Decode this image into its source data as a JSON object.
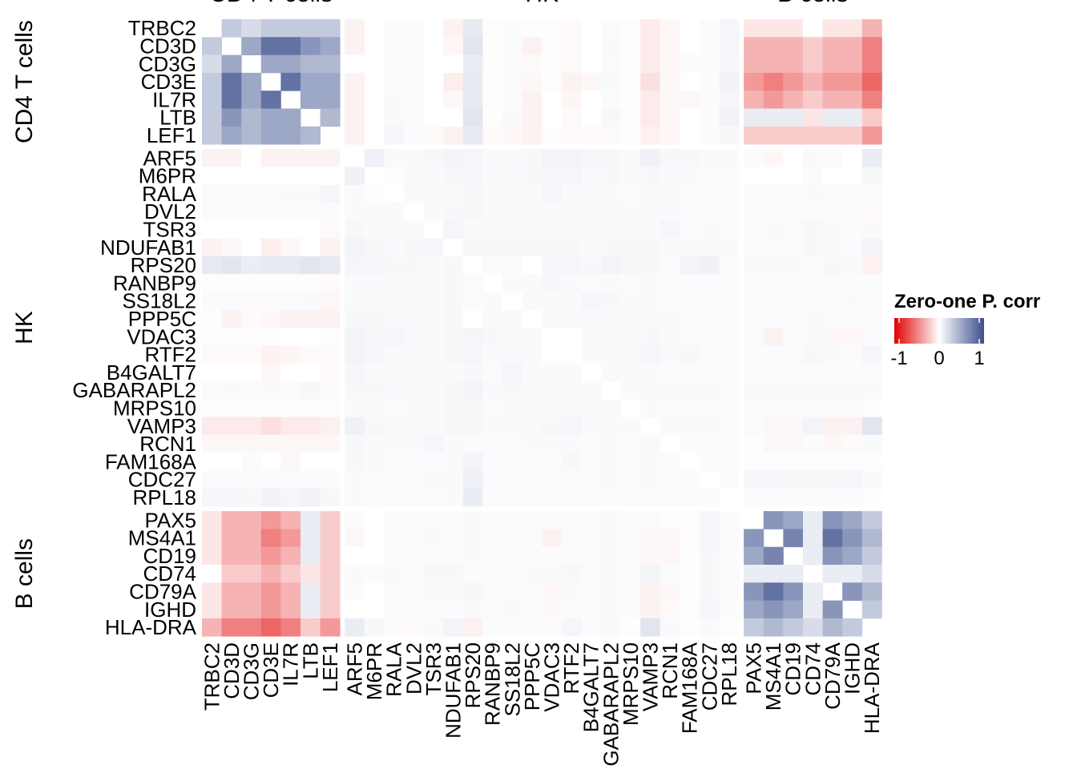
{
  "chart_data": {
    "type": "heatmap",
    "groups": [
      {
        "name": "CD4 T cells",
        "genes": [
          "TRBC2",
          "CD3D",
          "CD3G",
          "CD3E",
          "IL7R",
          "LTB",
          "LEF1"
        ]
      },
      {
        "name": "HK",
        "genes": [
          "ARF5",
          "M6PR",
          "RALA",
          "DVL2",
          "TSR3",
          "NDUFAB1",
          "RPS20",
          "RANBP9",
          "SS18L2",
          "PPP5C",
          "VDAC3",
          "RTF2",
          "B4GALT7",
          "GABARAPL2",
          "MRPS10",
          "VAMP3",
          "RCN1",
          "FAM168A",
          "CDC27",
          "RPL18"
        ]
      },
      {
        "name": "B cells",
        "genes": [
          "PAX5",
          "MS4A1",
          "CD19",
          "CD74",
          "CD79A",
          "IGHD",
          "HLA-DRA"
        ]
      }
    ],
    "values": [
      [
        null,
        0.3,
        0.2,
        0.3,
        0.3,
        0.3,
        0.3,
        -0.05,
        0,
        0.02,
        0.02,
        0,
        -0.05,
        0.12,
        0.01,
        0.02,
        0.01,
        0.01,
        -0.02,
        0,
        0.02,
        0.01,
        -0.08,
        -0.03,
        0,
        0.02,
        0.05,
        -0.1,
        -0.1,
        -0.1,
        0,
        -0.1,
        -0.1,
        -0.3
      ],
      [
        0.3,
        null,
        0.5,
        0.8,
        0.8,
        0.6,
        0.5,
        -0.05,
        0,
        0.02,
        0.02,
        0,
        -0.03,
        0.15,
        0.01,
        0.02,
        -0.05,
        0.01,
        -0.02,
        0,
        0.03,
        0.01,
        -0.08,
        -0.03,
        0,
        0.02,
        0.05,
        -0.3,
        -0.3,
        -0.3,
        -0.2,
        -0.3,
        -0.3,
        -0.5
      ],
      [
        0.2,
        0.5,
        null,
        0.5,
        0.5,
        0.4,
        0.4,
        0,
        0,
        0.02,
        0.02,
        0,
        0,
        0.1,
        0.01,
        0.02,
        -0.02,
        0.01,
        -0.02,
        0,
        0.02,
        0.01,
        -0.08,
        -0.03,
        0.02,
        0.02,
        0.04,
        -0.3,
        -0.3,
        -0.3,
        -0.2,
        -0.3,
        -0.3,
        -0.5
      ],
      [
        0.3,
        0.8,
        0.5,
        null,
        0.8,
        0.5,
        0.5,
        -0.05,
        0,
        0.02,
        0.02,
        0,
        -0.07,
        0.12,
        0.01,
        0.02,
        -0.03,
        0.01,
        -0.05,
        -0.03,
        0.03,
        0.01,
        -0.12,
        -0.03,
        0,
        0.02,
        0.07,
        -0.4,
        -0.5,
        -0.4,
        -0.3,
        -0.4,
        -0.4,
        -0.6
      ],
      [
        0.3,
        0.8,
        0.5,
        0.8,
        null,
        0.5,
        0.5,
        -0.05,
        0,
        0.03,
        0.02,
        0,
        -0.03,
        0.12,
        0.01,
        0.02,
        -0.05,
        0,
        -0.04,
        0,
        0.02,
        0.01,
        -0.08,
        -0.03,
        -0.03,
        0.02,
        0.05,
        -0.3,
        -0.4,
        -0.3,
        -0.2,
        -0.3,
        -0.3,
        -0.5
      ],
      [
        0.3,
        0.6,
        0.4,
        0.5,
        0.5,
        null,
        0.4,
        -0.05,
        0,
        0.03,
        0.02,
        0,
        0,
        0.15,
        0.01,
        0.03,
        -0.05,
        0,
        -0.02,
        0,
        0.04,
        0.01,
        -0.08,
        -0.03,
        0,
        0.02,
        0.07,
        0.1,
        0.1,
        0.1,
        -0.1,
        0.1,
        0.1,
        -0.2
      ],
      [
        0.3,
        0.5,
        0.4,
        0.5,
        0.5,
        0.4,
        null,
        -0.05,
        0,
        0.05,
        0.02,
        -0.02,
        -0.05,
        0.12,
        -0.02,
        -0.03,
        -0.05,
        0.01,
        -0.02,
        -0.02,
        0.02,
        0.01,
        -0.06,
        -0.03,
        0,
        0.02,
        0.04,
        -0.2,
        -0.2,
        -0.2,
        -0.2,
        -0.2,
        -0.2,
        -0.4
      ],
      [
        -0.05,
        -0.05,
        0,
        -0.05,
        -0.05,
        -0.05,
        -0.05,
        null,
        0.08,
        0.03,
        0.03,
        0.04,
        0.06,
        0.05,
        0.03,
        0.03,
        0.04,
        0.06,
        0.06,
        0.05,
        0.04,
        0.03,
        0.08,
        0.04,
        0.04,
        0.03,
        0.03,
        0.02,
        -0.03,
        0,
        0.03,
        -0.02,
        0,
        0.1
      ],
      [
        0,
        0,
        0,
        0,
        0,
        0,
        0,
        0.08,
        null,
        0.01,
        0.03,
        0.03,
        0.04,
        0.05,
        0.03,
        0.03,
        0.04,
        0.04,
        0.05,
        0.03,
        0.04,
        0.03,
        0.04,
        0.03,
        0.03,
        0.02,
        0.02,
        0,
        0,
        0,
        0.02,
        0,
        0,
        0.04
      ],
      [
        0.02,
        0.02,
        0.02,
        0.02,
        0.03,
        0.03,
        0.05,
        0.03,
        0.01,
        null,
        0.03,
        0.03,
        0.03,
        0.04,
        0.03,
        0.03,
        0.03,
        0.05,
        0.03,
        0.03,
        0.03,
        0.02,
        0.03,
        0.03,
        0.02,
        0.02,
        0.02,
        0.02,
        0.02,
        0.02,
        0.03,
        0.02,
        0.02,
        0.02
      ],
      [
        0.02,
        0.02,
        0.02,
        0.02,
        0.02,
        0.02,
        0.02,
        0.03,
        0.03,
        0.03,
        null,
        0.03,
        0.04,
        0.04,
        0.03,
        0.03,
        0.03,
        0.03,
        0.03,
        0.03,
        0.03,
        0.03,
        0.03,
        0.03,
        0.02,
        0.02,
        0.02,
        0.02,
        0.02,
        0.02,
        0.02,
        0.02,
        0.02,
        -0.02
      ],
      [
        0,
        0,
        0,
        0,
        0,
        0,
        -0.02,
        0.04,
        0.03,
        0.03,
        0.03,
        null,
        0.05,
        0.03,
        0.03,
        0.03,
        0.03,
        0.03,
        0.03,
        0.03,
        0.03,
        0.03,
        0.03,
        0.05,
        0.02,
        0.03,
        0.02,
        0.02,
        0.03,
        0.02,
        0.04,
        0.03,
        0.02,
        0.03
      ],
      [
        -0.05,
        -0.03,
        0,
        -0.07,
        -0.03,
        0,
        -0.05,
        0.06,
        0.04,
        0.03,
        0.04,
        0.05,
        null,
        0.04,
        0.04,
        0.04,
        0.04,
        0.04,
        0.04,
        0.03,
        0.04,
        0.04,
        0.04,
        0.03,
        0.03,
        0.03,
        0.03,
        0.02,
        0.02,
        0.02,
        0.04,
        0.03,
        0.02,
        0.06
      ],
      [
        0.12,
        0.15,
        0.1,
        0.12,
        0.12,
        0.15,
        0.12,
        0.05,
        0.05,
        0.04,
        0.04,
        0.03,
        0.04,
        null,
        0.02,
        0.02,
        0,
        0.05,
        0.05,
        0.04,
        0.06,
        0.04,
        0.04,
        0.02,
        0.06,
        0.08,
        0.02,
        0.03,
        0.03,
        0.03,
        0.02,
        0.04,
        0.03,
        -0.06
      ],
      [
        0.01,
        0.01,
        0.01,
        0.01,
        0.01,
        0.01,
        -0.02,
        0.03,
        0.03,
        0.03,
        0.03,
        0.03,
        0.04,
        0.02,
        null,
        0.03,
        0.03,
        0.04,
        0.03,
        0.02,
        0.03,
        0.02,
        0.03,
        0.02,
        0.02,
        0.02,
        0.02,
        0.02,
        0.02,
        0.02,
        0.02,
        0.02,
        0.02,
        0.02
      ],
      [
        0.02,
        0.02,
        0.02,
        0.02,
        0.02,
        0.03,
        -0.03,
        0.03,
        0.03,
        0.03,
        0.03,
        0.03,
        0.04,
        0.02,
        0.03,
        null,
        0.03,
        0.03,
        0.03,
        0.05,
        0.04,
        0.03,
        0.03,
        0.02,
        0.02,
        0.02,
        0.02,
        0.02,
        0.02,
        0.02,
        0.02,
        0.02,
        0.03,
        0.02
      ],
      [
        0.01,
        -0.05,
        -0.02,
        -0.03,
        -0.05,
        -0.05,
        -0.05,
        0.04,
        0.04,
        0.03,
        0.03,
        0.03,
        0.04,
        0,
        0.03,
        0.03,
        null,
        0.03,
        0.03,
        0.03,
        0.03,
        0.03,
        0.03,
        0.03,
        0.02,
        0.02,
        0.02,
        0.02,
        0.02,
        0.02,
        0.03,
        0.02,
        0.02,
        0.02
      ],
      [
        0.01,
        0.01,
        0.01,
        0.01,
        0,
        0,
        0.01,
        0.06,
        0.04,
        0.05,
        0.03,
        0.03,
        0.04,
        0.05,
        0.04,
        0.03,
        0.03,
        null,
        0,
        0.03,
        0.03,
        0.03,
        0.04,
        0.03,
        0.02,
        0.02,
        0.02,
        0.02,
        -0.05,
        0.02,
        0.03,
        -0.03,
        -0.03,
        0.02
      ],
      [
        -0.02,
        -0.02,
        -0.02,
        -0.05,
        -0.04,
        -0.02,
        -0.02,
        0.06,
        0.05,
        0.03,
        0.03,
        0.03,
        0.04,
        0.05,
        0.03,
        0.03,
        0.03,
        0,
        null,
        0.03,
        0.03,
        0.03,
        0.05,
        0.03,
        0.04,
        0.02,
        0.02,
        0.02,
        0.02,
        0.02,
        0.04,
        0.03,
        0.02,
        0.05
      ],
      [
        0,
        0,
        0,
        -0.03,
        0,
        0,
        -0.02,
        0.05,
        0.03,
        0.03,
        0.03,
        0.03,
        0.03,
        0.04,
        0.02,
        0.05,
        0.03,
        0.03,
        0.03,
        null,
        0.03,
        0.03,
        0.03,
        0.02,
        0.02,
        0.02,
        0.02,
        0.02,
        0.02,
        0.02,
        0.02,
        0.02,
        0.02,
        0.02
      ],
      [
        0.02,
        0.03,
        0.02,
        0.03,
        0.02,
        0.04,
        0.02,
        0.04,
        0.04,
        0.03,
        0.03,
        0.03,
        0.04,
        0.06,
        0.03,
        0.04,
        0.03,
        0.03,
        0.03,
        0.03,
        null,
        0.03,
        0.03,
        0.03,
        0.03,
        0.03,
        0.02,
        0.03,
        0.03,
        0.03,
        0.03,
        0.03,
        0.03,
        0.03
      ],
      [
        0.01,
        0.01,
        0.01,
        0.01,
        0.01,
        0.01,
        0.01,
        0.03,
        0.03,
        0.02,
        0.03,
        0.03,
        0.04,
        0.04,
        0.02,
        0.03,
        0.03,
        0.03,
        0.03,
        0.03,
        0.03,
        null,
        0.03,
        0.02,
        0.02,
        0.02,
        0.02,
        0.02,
        0.02,
        0.02,
        0.02,
        0.02,
        0.02,
        0.01
      ],
      [
        -0.08,
        -0.08,
        -0.08,
        -0.12,
        -0.08,
        -0.08,
        -0.06,
        0.08,
        0.04,
        0.03,
        0.03,
        0.03,
        0.04,
        0.04,
        0.03,
        0.03,
        0.03,
        0.04,
        0.05,
        0.03,
        0.03,
        0.03,
        null,
        0.03,
        0.03,
        0.03,
        0.02,
        0.02,
        -0.03,
        -0.03,
        0.06,
        -0.05,
        -0.05,
        0.15
      ],
      [
        -0.03,
        -0.03,
        -0.03,
        -0.03,
        -0.03,
        -0.03,
        -0.03,
        0.04,
        0.03,
        0.03,
        0.03,
        0.05,
        0.03,
        0.02,
        0.02,
        0.02,
        0.03,
        0.03,
        0.03,
        0.02,
        0.03,
        0.02,
        0.03,
        null,
        0.02,
        0.02,
        0.02,
        0.01,
        -0.03,
        -0.03,
        0.02,
        -0.03,
        -0.02,
        0.03
      ],
      [
        0,
        0,
        0.02,
        0,
        -0.03,
        0,
        0,
        0.04,
        0.03,
        0.02,
        0.02,
        0.02,
        0.03,
        0.06,
        0.02,
        0.02,
        0.02,
        0.02,
        0.04,
        0.02,
        0.03,
        0.02,
        0.03,
        0.02,
        null,
        0.02,
        0.02,
        0.01,
        0.01,
        0.01,
        0.01,
        0.01,
        0.01,
        0.01
      ],
      [
        0.02,
        0.02,
        0.02,
        0.02,
        0.02,
        0.02,
        0.02,
        0.03,
        0.02,
        0.02,
        0.02,
        0.03,
        0.03,
        0.08,
        0.02,
        0.02,
        0.02,
        0.02,
        0.02,
        0.02,
        0.03,
        0.02,
        0.03,
        0.02,
        0.02,
        null,
        0.02,
        0.05,
        0.05,
        0.04,
        0.04,
        0.04,
        0.05,
        0.03
      ],
      [
        0.05,
        0.05,
        0.04,
        0.07,
        0.05,
        0.07,
        0.04,
        0.03,
        0.02,
        0.02,
        0.02,
        0.02,
        0.03,
        0.1,
        0.02,
        0.02,
        0.02,
        0.02,
        0.02,
        0.02,
        0.02,
        0.02,
        0.02,
        0.02,
        0.02,
        0.02,
        null,
        0.02,
        0.02,
        0.02,
        0.02,
        0.02,
        0.02,
        0.01
      ],
      [
        -0.1,
        -0.3,
        -0.3,
        -0.4,
        -0.3,
        0.1,
        -0.2,
        0.02,
        0,
        0.02,
        0.02,
        0.02,
        0.02,
        0.03,
        0.02,
        0.02,
        0.02,
        0.02,
        0.02,
        0.02,
        0.03,
        0.02,
        0.02,
        0.01,
        0.01,
        0.05,
        0.02,
        null,
        0.6,
        0.5,
        0.1,
        0.6,
        0.5,
        0.3
      ],
      [
        -0.1,
        -0.3,
        -0.3,
        -0.5,
        -0.4,
        0.1,
        -0.2,
        -0.03,
        0,
        0.02,
        0.02,
        0.03,
        0.02,
        0.03,
        0.02,
        0.02,
        0.02,
        -0.05,
        0.02,
        0.02,
        0.03,
        0.02,
        -0.03,
        -0.03,
        0.01,
        0.05,
        0.02,
        0.6,
        null,
        0.7,
        0.1,
        0.8,
        0.6,
        0.4
      ],
      [
        -0.1,
        -0.3,
        -0.3,
        -0.4,
        -0.3,
        0.1,
        -0.2,
        0,
        0,
        0.02,
        0.02,
        0.02,
        0.02,
        0.03,
        0.02,
        0.02,
        0.02,
        0.02,
        0.02,
        0.02,
        0.03,
        0.02,
        -0.03,
        -0.03,
        0.01,
        0.04,
        0.02,
        0.5,
        0.7,
        null,
        0.1,
        0.6,
        0.5,
        0.3
      ],
      [
        0,
        -0.2,
        -0.2,
        -0.3,
        -0.2,
        -0.1,
        -0.2,
        0.03,
        0.02,
        0.03,
        0.02,
        0.04,
        0.04,
        0.02,
        0.02,
        0.02,
        0.03,
        0.03,
        0.04,
        0.02,
        0.03,
        0.02,
        0.06,
        0.02,
        0.01,
        0.04,
        0.02,
        0.1,
        0.1,
        0.1,
        null,
        0.1,
        0.1,
        0.2
      ],
      [
        -0.1,
        -0.3,
        -0.3,
        -0.4,
        -0.3,
        0.1,
        -0.2,
        -0.02,
        0,
        0.02,
        0.02,
        0.03,
        0.03,
        0.04,
        0.02,
        0.02,
        0.02,
        -0.03,
        0.03,
        0.02,
        0.03,
        0.02,
        -0.05,
        -0.03,
        0.01,
        0.04,
        0.02,
        0.6,
        0.8,
        0.6,
        0.1,
        null,
        0.6,
        0.4
      ],
      [
        -0.1,
        -0.3,
        -0.3,
        -0.4,
        -0.3,
        0.1,
        -0.2,
        0,
        0,
        0.02,
        0.02,
        0.02,
        0.02,
        0.03,
        0.02,
        0.03,
        0.02,
        -0.03,
        0.02,
        0.02,
        0.03,
        0.02,
        -0.05,
        -0.02,
        0.01,
        0.05,
        0.02,
        0.5,
        0.6,
        0.5,
        0.1,
        0.6,
        null,
        0.3
      ],
      [
        -0.3,
        -0.5,
        -0.5,
        -0.6,
        -0.5,
        -0.2,
        -0.4,
        0.1,
        0.04,
        0.02,
        -0.02,
        0.03,
        0.06,
        -0.06,
        0.02,
        0.02,
        0.02,
        0.02,
        0.05,
        0.02,
        0.03,
        0.01,
        0.15,
        0.03,
        0.01,
        0.03,
        0.01,
        0.3,
        0.4,
        0.3,
        0.2,
        0.4,
        0.3,
        null
      ]
    ],
    "colors": {
      "low": "#e00000",
      "mid": "#ffffff",
      "high": "#3b4f8c"
    },
    "legend": {
      "title": "Zero-one P. corr",
      "lim": [
        -1,
        1
      ],
      "ticks": [
        -1,
        0,
        1
      ]
    }
  }
}
